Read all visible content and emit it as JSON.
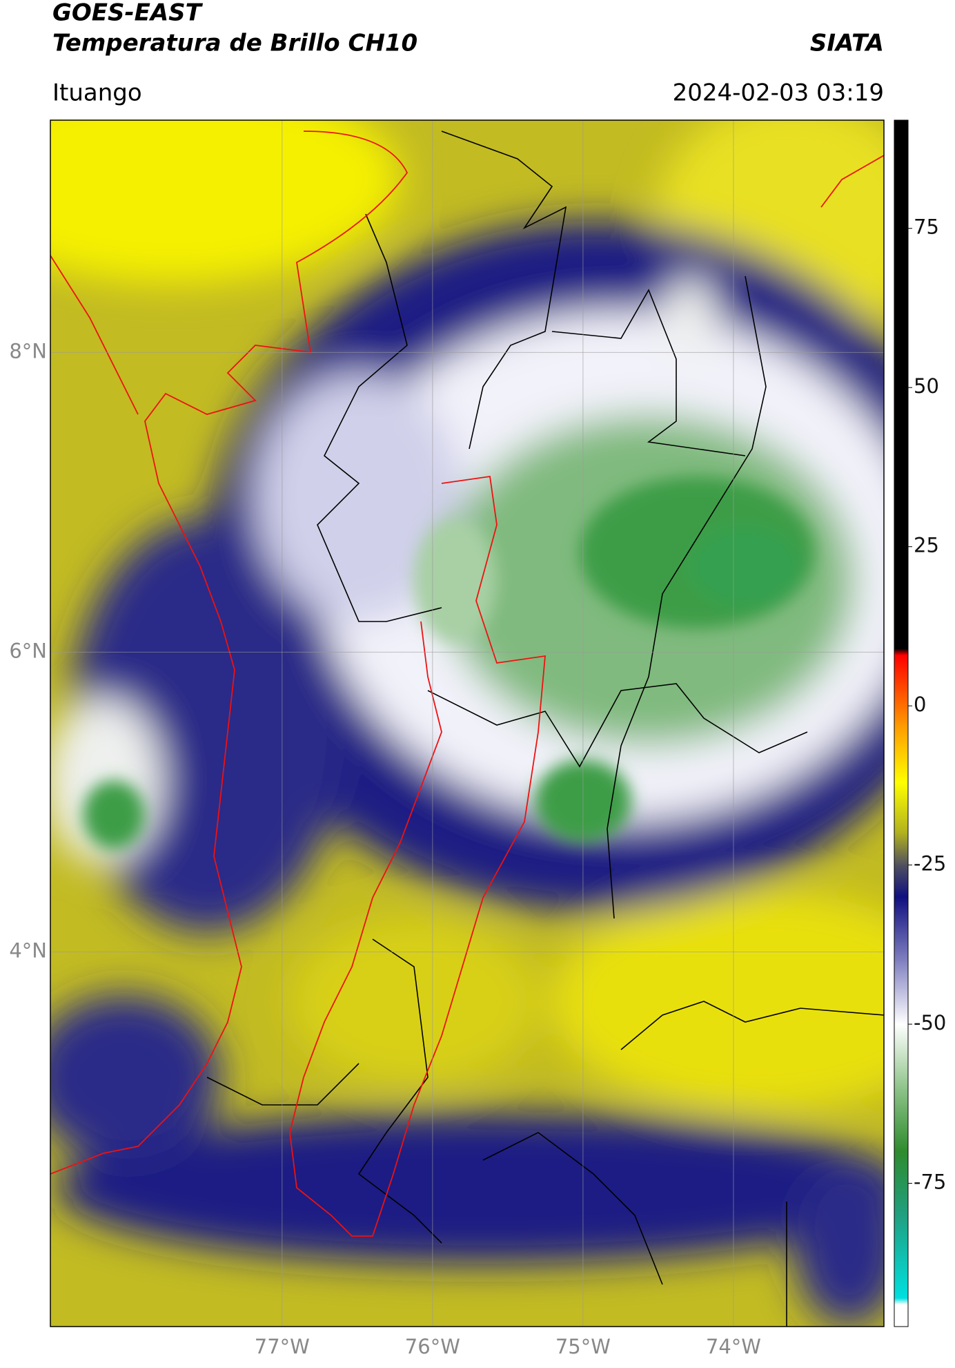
{
  "header": {
    "title": "GOES-EAST",
    "subtitle": "Temperatura de Brillo CH10",
    "source": "SIATA",
    "location": "Ituango",
    "datetime": "2024-02-03 03:19"
  },
  "map": {
    "xlim": [
      -78.54,
      -73.0
    ],
    "ylim": [
      1.5,
      9.55
    ],
    "xticks": [
      {
        "value": -77,
        "label": "77°W"
      },
      {
        "value": -76,
        "label": "76°W"
      },
      {
        "value": -75,
        "label": "75°W"
      },
      {
        "value": -74,
        "label": "74°W"
      }
    ],
    "yticks": [
      {
        "value": 8,
        "label": "8°N"
      },
      {
        "value": 6,
        "label": "6°N"
      },
      {
        "value": 4,
        "label": "4°N"
      }
    ],
    "grid": true
  },
  "colorbar": {
    "lim": [
      -97.5,
      92
    ],
    "ticks": [
      75,
      50,
      25,
      0,
      -25,
      -50,
      -75
    ],
    "colormap": [
      {
        "value": -97.5,
        "color": "#ffffff"
      },
      {
        "value": -94,
        "color": "#ffffff"
      },
      {
        "value": -93,
        "color": "#00e0e0"
      },
      {
        "value": -80,
        "color": "#20a080"
      },
      {
        "value": -70,
        "color": "#2e8b2e"
      },
      {
        "value": -60,
        "color": "#8fc48a"
      },
      {
        "value": -50,
        "color": "#ffffff"
      },
      {
        "value": -40,
        "color": "#8080c0"
      },
      {
        "value": -30,
        "color": "#101080"
      },
      {
        "value": -25,
        "color": "#505060"
      },
      {
        "value": -20,
        "color": "#b0b020"
      },
      {
        "value": -12,
        "color": "#ffff00"
      },
      {
        "value": -3,
        "color": "#ff9900"
      },
      {
        "value": 8,
        "color": "#ff0000"
      },
      {
        "value": 9,
        "color": "#000000"
      },
      {
        "value": 92,
        "color": "#000000"
      }
    ]
  }
}
